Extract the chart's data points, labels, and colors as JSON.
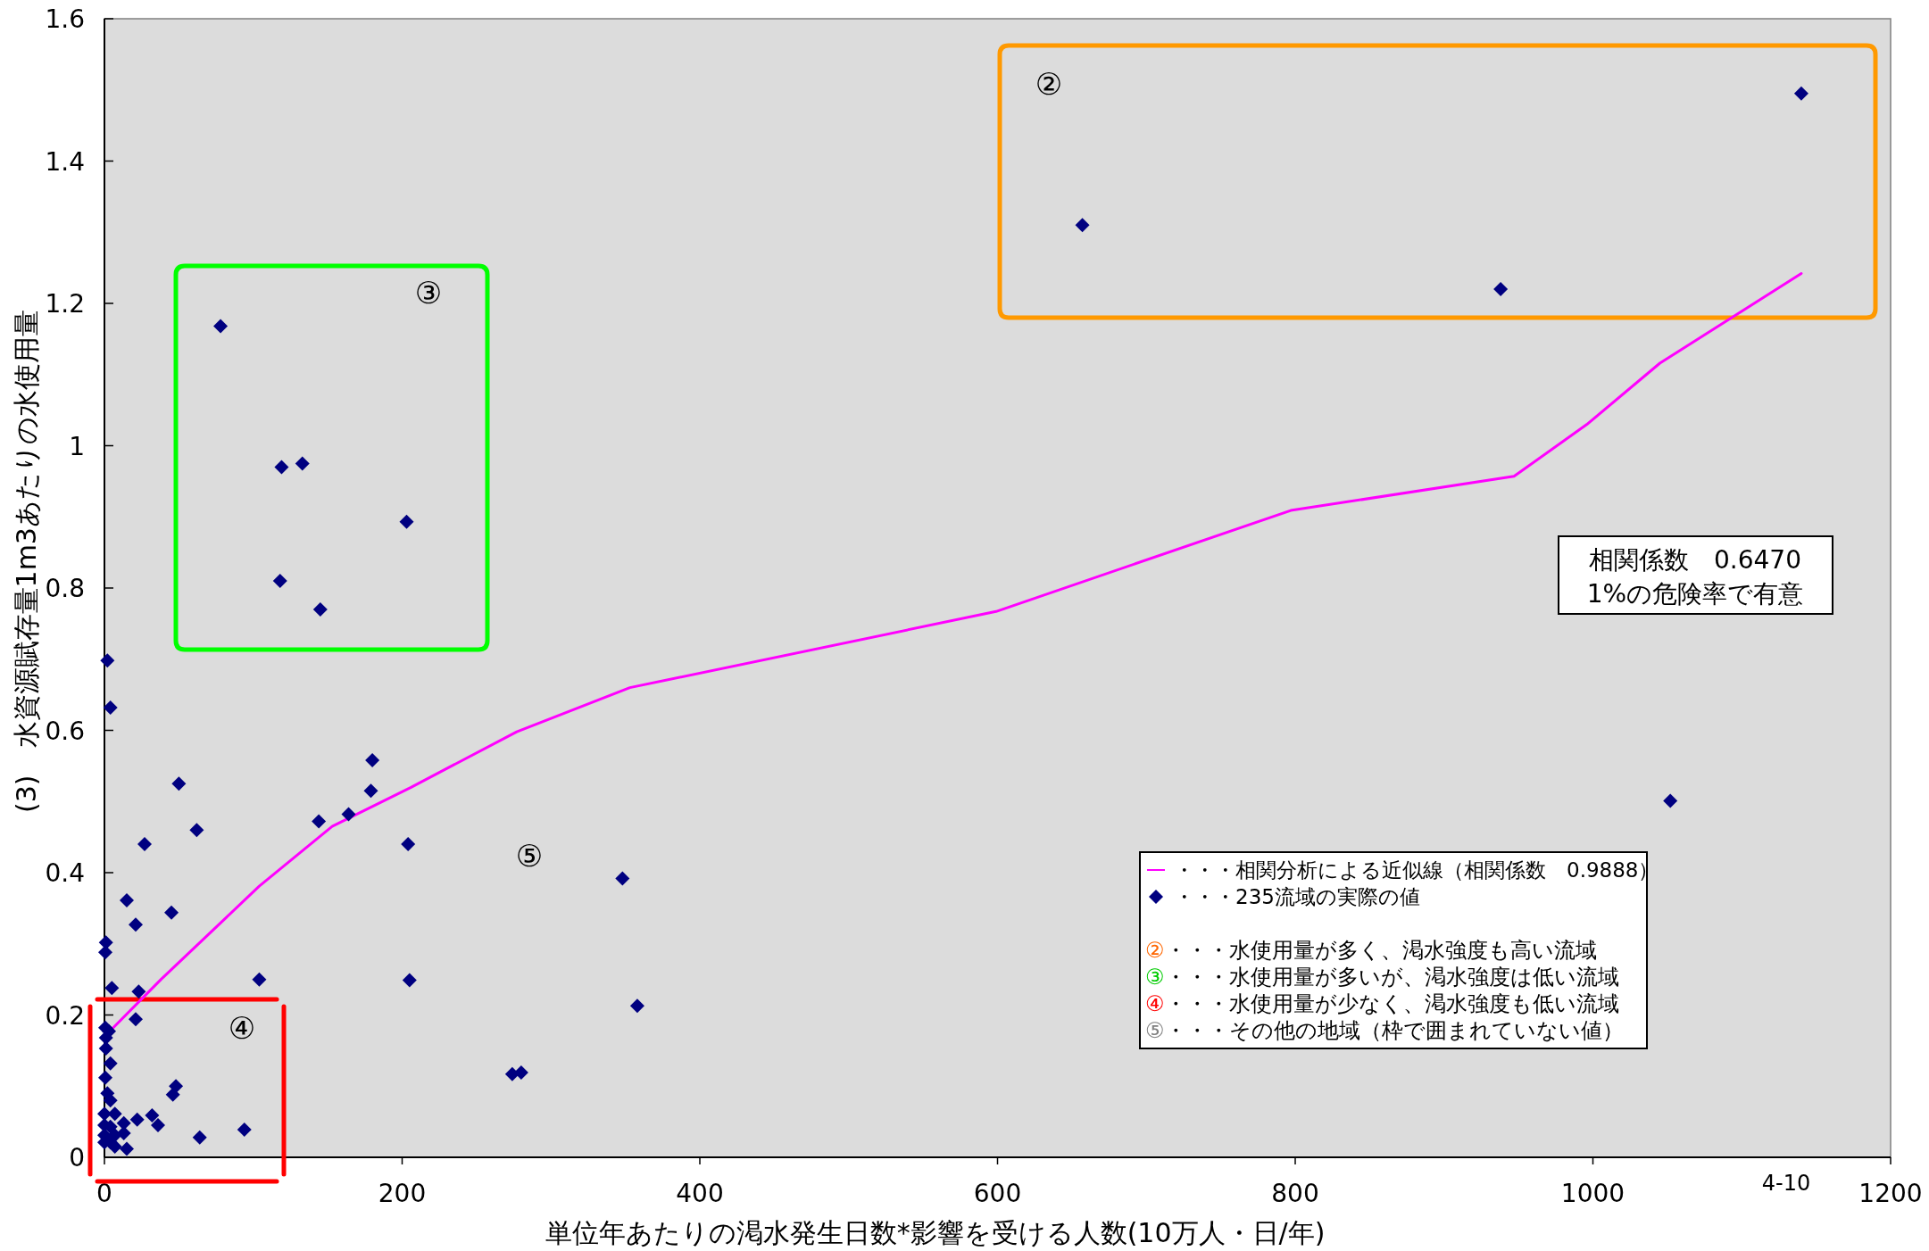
{
  "chart_data": {
    "type": "scatter",
    "xlabel": "単位年あたりの渇水発生日数*影響を受ける人数(10万人・日/年)",
    "ylabel": "(3)　水資源賦存量1m3あたりの水使用量",
    "xlim": [
      0,
      1200
    ],
    "ylim": [
      0,
      1.6
    ],
    "xticks": [
      0,
      200,
      400,
      600,
      800,
      1000,
      1200
    ],
    "yticks": [
      0,
      0.2,
      0.4,
      0.6,
      0.8,
      1,
      1.2,
      1.4,
      1.6
    ],
    "legend": "bottom right",
    "grid": false,
    "series": [
      {
        "name": "・・・相関分析による近似線（相関係数　0.9888）",
        "type": "line",
        "color": "#ff00ff",
        "marker": "none",
        "line_style": "solid",
        "x": [
          4,
          38,
          104,
          153,
          206,
          277,
          353,
          599,
          797,
          947,
          996,
          1045,
          1140
        ],
        "values": [
          0.178,
          0.25,
          0.381,
          0.465,
          0.52,
          0.598,
          0.66,
          0.767,
          0.909,
          0.957,
          1.03,
          1.116,
          1.242
        ]
      },
      {
        "name": "・・・235流域の実際の値",
        "type": "scatter",
        "color": "#000080",
        "marker": "diamond",
        "x": [
          657,
          938,
          1140,
          78,
          119,
          133,
          203,
          118,
          145,
          2,
          4,
          180,
          179,
          50,
          62,
          27,
          144,
          164,
          204,
          15,
          45,
          21,
          1,
          0.6,
          5,
          23,
          104,
          205,
          1052,
          348,
          358,
          274,
          280,
          21,
          0.6,
          3,
          1,
          1,
          4,
          0.6,
          48,
          46,
          2,
          4,
          0,
          7,
          32,
          36,
          22,
          13,
          0,
          4,
          13,
          0,
          7,
          94,
          64,
          0,
          7,
          15,
          4
        ],
        "values": [
          1.31,
          1.22,
          1.495,
          1.168,
          0.97,
          0.975,
          0.893,
          0.81,
          0.77,
          0.698,
          0.632,
          0.558,
          0.515,
          0.525,
          0.46,
          0.44,
          0.472,
          0.482,
          0.44,
          0.361,
          0.344,
          0.327,
          0.302,
          0.288,
          0.238,
          0.233,
          0.25,
          0.249,
          0.501,
          0.392,
          0.213,
          0.117,
          0.119,
          0.194,
          0.182,
          0.177,
          0.168,
          0.153,
          0.132,
          0.112,
          0.1,
          0.088,
          0.09,
          0.08,
          0.061,
          0.061,
          0.059,
          0.045,
          0.053,
          0.048,
          0.045,
          0.043,
          0.034,
          0.031,
          0.031,
          0.039,
          0.028,
          0.021,
          0.015,
          0.012,
          0.021
        ]
      }
    ],
    "annotations": [
      "②",
      "③",
      "④",
      "⑤",
      "②・・・水使用量が多く、渇水強度も高い流域",
      "③・・・水使用量が多いが、渇水強度は低い流域",
      "④・・・水使用量が少なく、渇水強度も低い流域",
      "⑤・・・その他の地域（枠で囲まれていない値）",
      "相関係数　0.6470",
      "1%の危険率で有意",
      "4-10"
    ]
  }
}
